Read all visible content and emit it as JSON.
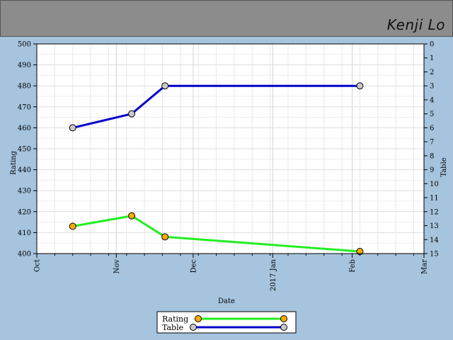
{
  "header": {
    "player_name": "Kenji Lo"
  },
  "chart_data": {
    "type": "line",
    "title": "",
    "xlabel": "Date",
    "ylabel": "Rating",
    "y2label": "Table",
    "x_ticks": [
      {
        "date": "2016-10-01",
        "label": "Oct"
      },
      {
        "date": "2016-11-01",
        "label": "Nov"
      },
      {
        "date": "2016-12-01",
        "label": "Dec"
      },
      {
        "date": "2017-01-01",
        "label": "2017 Jan"
      },
      {
        "date": "2017-02-01",
        "label": "Feb"
      },
      {
        "date": "2017-03-01",
        "label": "Mar"
      }
    ],
    "xlim": [
      "2016-10-01",
      "2017-03-01"
    ],
    "ylim": [
      400,
      500
    ],
    "y_ticks": [
      400,
      410,
      420,
      430,
      440,
      450,
      460,
      470,
      480,
      490,
      500
    ],
    "y2lim": [
      15,
      0
    ],
    "y2_ticks": [
      0,
      1,
      2,
      3,
      4,
      5,
      6,
      7,
      8,
      9,
      10,
      11,
      12,
      13,
      14,
      15
    ],
    "grid": true,
    "legend_position": "bottom-center",
    "series": [
      {
        "name": "Rating",
        "axis": "left",
        "color": "#22ee22",
        "marker_color": "#ffaa00",
        "x": [
          "2016-10-15",
          "2016-11-07",
          "2016-11-20",
          "2017-02-04"
        ],
        "y": [
          413,
          418,
          408,
          401
        ]
      },
      {
        "name": "Table",
        "axis": "right",
        "color": "#0000cc",
        "marker_color": "#c8c8c8",
        "x": [
          "2016-10-15",
          "2016-11-07",
          "2016-11-20",
          "2017-02-04"
        ],
        "y": [
          6,
          5,
          3,
          3
        ]
      }
    ]
  }
}
